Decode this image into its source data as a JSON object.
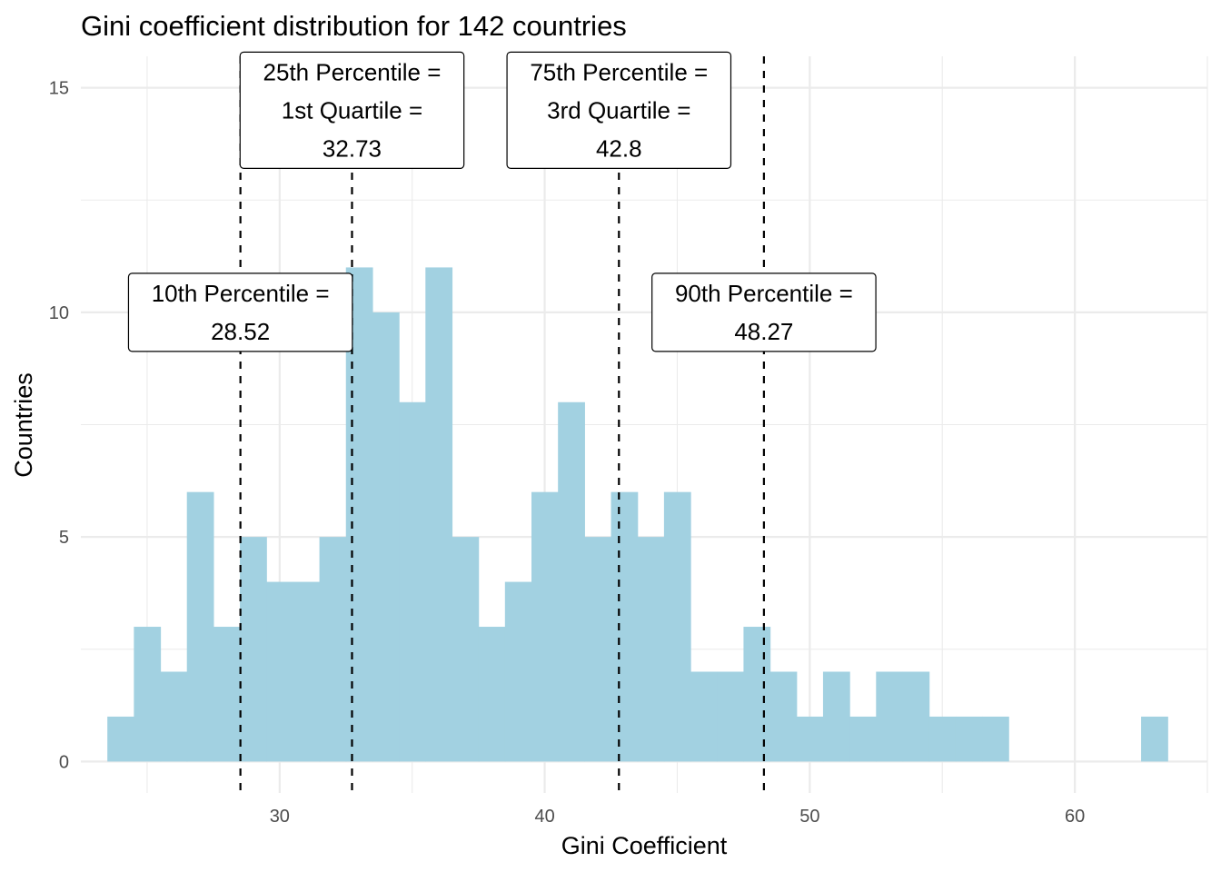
{
  "chart_data": {
    "type": "bar",
    "title": "Gini coefficient distribution for 142 countries",
    "xlabel": "Gini Coefficient",
    "ylabel": "Countries",
    "xlim": [
      22.5,
      65
    ],
    "ylim": [
      -0.7,
      15.7
    ],
    "x_ticks": [
      30,
      40,
      50,
      60
    ],
    "y_ticks": [
      0,
      5,
      10,
      15
    ],
    "grid": true,
    "bar_color": "#a2d1e1",
    "bin_width": 1,
    "bins": [
      {
        "x": 24,
        "count": 1
      },
      {
        "x": 25,
        "count": 3
      },
      {
        "x": 26,
        "count": 2
      },
      {
        "x": 27,
        "count": 6
      },
      {
        "x": 28,
        "count": 3
      },
      {
        "x": 29,
        "count": 5
      },
      {
        "x": 30,
        "count": 4
      },
      {
        "x": 31,
        "count": 4
      },
      {
        "x": 32,
        "count": 5
      },
      {
        "x": 33,
        "count": 11
      },
      {
        "x": 34,
        "count": 10
      },
      {
        "x": 35,
        "count": 8
      },
      {
        "x": 36,
        "count": 11
      },
      {
        "x": 37,
        "count": 5
      },
      {
        "x": 38,
        "count": 3
      },
      {
        "x": 39,
        "count": 4
      },
      {
        "x": 40,
        "count": 6
      },
      {
        "x": 41,
        "count": 8
      },
      {
        "x": 42,
        "count": 5
      },
      {
        "x": 43,
        "count": 6
      },
      {
        "x": 44,
        "count": 5
      },
      {
        "x": 45,
        "count": 6
      },
      {
        "x": 46,
        "count": 2
      },
      {
        "x": 47,
        "count": 2
      },
      {
        "x": 48,
        "count": 3
      },
      {
        "x": 49,
        "count": 2
      },
      {
        "x": 50,
        "count": 1
      },
      {
        "x": 51,
        "count": 2
      },
      {
        "x": 52,
        "count": 1
      },
      {
        "x": 53,
        "count": 2
      },
      {
        "x": 54,
        "count": 2
      },
      {
        "x": 55,
        "count": 1
      },
      {
        "x": 56,
        "count": 1
      },
      {
        "x": 57,
        "count": 1
      },
      {
        "x": 63,
        "count": 1
      }
    ],
    "percentile_lines": [
      {
        "x": 28.52,
        "lines": [
          "10th Percentile =",
          "28.52"
        ],
        "label_y": 10
      },
      {
        "x": 32.73,
        "lines": [
          "25th Percentile =",
          "1st Quartile =",
          "32.73"
        ],
        "label_y": 14.5
      },
      {
        "x": 42.8,
        "lines": [
          "75th Percentile =",
          "3rd Quartile =",
          "42.8"
        ],
        "label_y": 14.5
      },
      {
        "x": 48.27,
        "lines": [
          "90th Percentile =",
          "48.27"
        ],
        "label_y": 10
      }
    ]
  }
}
